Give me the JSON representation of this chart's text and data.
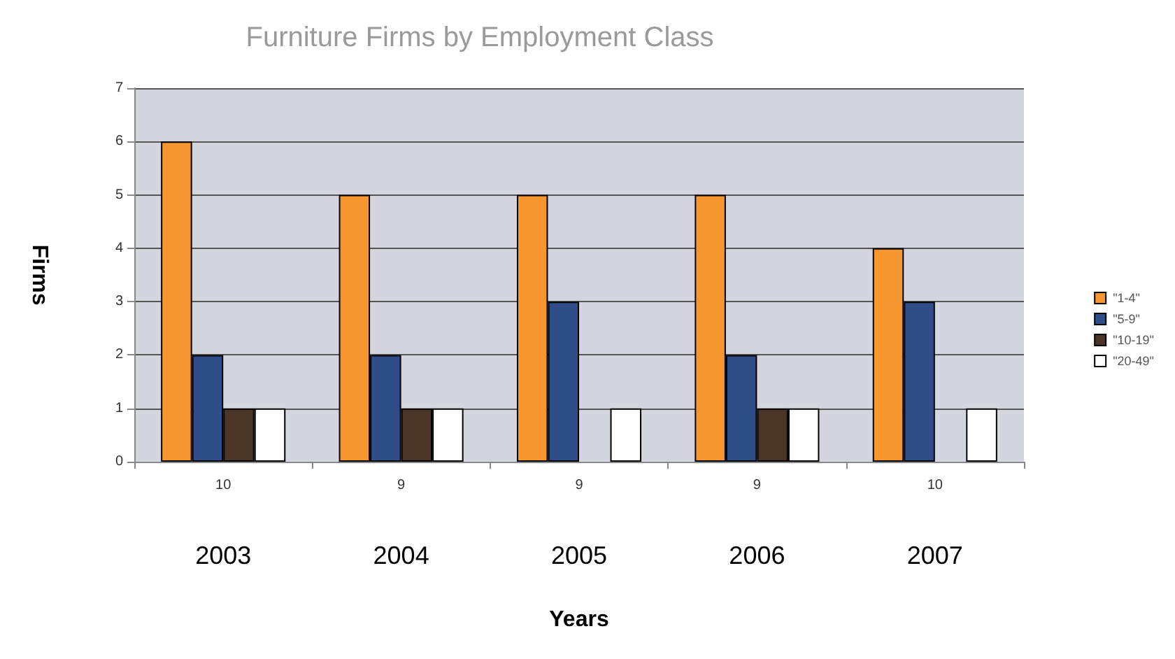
{
  "chart_data": {
    "type": "bar",
    "title": "Furniture Firms by Employment Class",
    "xlabel": "Years",
    "ylabel": "Firms",
    "categories": [
      "2003",
      "2004",
      "2005",
      "2006",
      "2007"
    ],
    "series": [
      {
        "name": "\"1-4\"",
        "color": "#f7962e",
        "values": [
          6,
          5,
          5,
          5,
          4
        ]
      },
      {
        "name": "\"5-9\"",
        "color": "#2f4d88",
        "values": [
          2,
          2,
          3,
          2,
          3
        ]
      },
      {
        "name": "\"10-19\"",
        "color": "#4a3526",
        "values": [
          1,
          1,
          null,
          1,
          null
        ]
      },
      {
        "name": "\"20-49\"",
        "color": "#ffffff",
        "values": [
          1,
          1,
          1,
          1,
          1
        ]
      }
    ],
    "totals": [
      "10",
      "9",
      "9",
      "9",
      "10"
    ],
    "ylim": [
      0,
      7
    ],
    "yticks": [
      0,
      1,
      2,
      3,
      4,
      5,
      6,
      7
    ],
    "grid": "y",
    "legend": "right"
  }
}
